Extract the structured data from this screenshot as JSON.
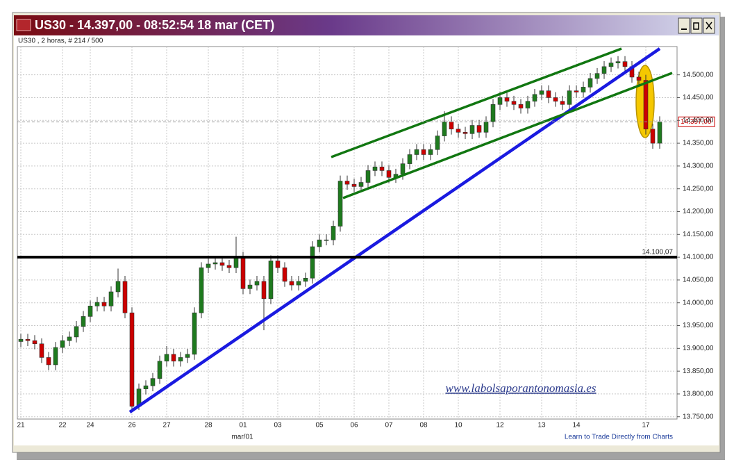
{
  "chart_data": {
    "type": "candlestick",
    "title": "US30 - 14.397,00 - 08:52:54  18 mar (CET)",
    "subtitle": "US30 , 2 horas, # 214 / 500",
    "watermark": "www.labolsaporantonomasia.es",
    "footer": "Learn to Trade Directly from Charts",
    "month_label": "mar/01",
    "up_color": "#1e7a1e",
    "down_color": "#cc0000",
    "grid": true,
    "categories": [
      "21",
      null,
      null,
      null,
      null,
      null,
      "22",
      null,
      null,
      null,
      "24",
      null,
      null,
      null,
      null,
      null,
      "26",
      null,
      null,
      null,
      null,
      "27",
      null,
      null,
      null,
      null,
      null,
      "28",
      null,
      null,
      null,
      null,
      "01",
      null,
      null,
      null,
      null,
      "03",
      null,
      null,
      null,
      null,
      null,
      "05",
      null,
      null,
      null,
      null,
      "06",
      null,
      null,
      null,
      null,
      "07",
      null,
      null,
      null,
      null,
      "08",
      null,
      null,
      null,
      null,
      "10",
      null,
      null,
      null,
      null,
      null,
      "12",
      null,
      null,
      null,
      null,
      null,
      "13",
      null,
      null,
      null,
      null,
      "14",
      null,
      null,
      null,
      null,
      null,
      null,
      null,
      null,
      null,
      "17",
      null,
      null
    ],
    "open": [
      13915,
      13920,
      13917,
      13910,
      13880,
      13864,
      13902,
      13917,
      13925,
      13948,
      13970,
      13993,
      14001,
      13993,
      14024,
      14047,
      13978,
      13773,
      13811,
      13818,
      13834,
      13872,
      13887,
      13872,
      13880,
      13887,
      13978,
      14077,
      14085,
      14088,
      14082,
      14077,
      14100,
      14031,
      14039,
      14047,
      14009,
      14092,
      14077,
      14047,
      14039,
      14047,
      14054,
      14123,
      14138,
      14138,
      14168,
      14267,
      14260,
      14255,
      14264,
      14290,
      14298,
      14290,
      14275,
      14282,
      14305,
      14325,
      14336,
      14325,
      14336,
      14366,
      14397,
      14381,
      14374,
      14371,
      14389,
      14374,
      14397,
      14435,
      14450,
      14442,
      14435,
      14427,
      14442,
      14457,
      14465,
      14450,
      14442,
      14435,
      14465,
      14462,
      14473,
      14492,
      14503,
      14518,
      14526,
      14529,
      14518,
      14495,
      14488,
      14381,
      14350
    ],
    "high": [
      13932,
      13932,
      13929,
      13922,
      13892,
      13914,
      13929,
      13937,
      13960,
      13982,
      14005,
      14013,
      14013,
      14036,
      14075,
      14059,
      13990,
      13823,
      13830,
      13846,
      13884,
      13905,
      13899,
      13892,
      13899,
      13990,
      14089,
      14097,
      14100,
      14100,
      14094,
      14145,
      14112,
      14051,
      14059,
      14059,
      14104,
      14104,
      14089,
      14059,
      14059,
      14066,
      14135,
      14150,
      14150,
      14180,
      14279,
      14279,
      14272,
      14276,
      14302,
      14310,
      14310,
      14302,
      14294,
      14317,
      14337,
      14348,
      14348,
      14348,
      14378,
      14420,
      14409,
      14393,
      14386,
      14401,
      14401,
      14409,
      14447,
      14462,
      14462,
      14454,
      14447,
      14454,
      14469,
      14477,
      14477,
      14462,
      14454,
      14477,
      14477,
      14485,
      14504,
      14515,
      14530,
      14538,
      14541,
      14541,
      14530,
      14507,
      14500,
      14393,
      14409
    ],
    "low": [
      13903,
      13905,
      13898,
      13868,
      13852,
      13852,
      13890,
      13905,
      13913,
      13936,
      13958,
      13981,
      13981,
      13981,
      14012,
      13966,
      13765,
      13765,
      13799,
      13806,
      13822,
      13860,
      13860,
      13860,
      13868,
      13875,
      13966,
      14065,
      14073,
      14070,
      14065,
      14065,
      14019,
      14019,
      14027,
      13940,
      13997,
      14065,
      14035,
      14027,
      14027,
      14035,
      14042,
      14111,
      14126,
      14126,
      14156,
      14248,
      14243,
      14243,
      14252,
      14278,
      14278,
      14263,
      14263,
      14270,
      14293,
      14313,
      14313,
      14313,
      14324,
      14354,
      14369,
      14362,
      14359,
      14359,
      14362,
      14362,
      14385,
      14423,
      14430,
      14423,
      14415,
      14415,
      14430,
      14445,
      14438,
      14430,
      14423,
      14423,
      14450,
      14450,
      14461,
      14480,
      14491,
      14506,
      14514,
      14506,
      14483,
      14476,
      14369,
      14338,
      14338
    ],
    "close": [
      13920,
      13917,
      13910,
      13880,
      13864,
      13902,
      13917,
      13925,
      13948,
      13970,
      13993,
      14001,
      13993,
      14024,
      14047,
      13978,
      13773,
      13811,
      13818,
      13834,
      13872,
      13887,
      13872,
      13880,
      13887,
      13978,
      14077,
      14085,
      14088,
      14082,
      14077,
      14100,
      14031,
      14039,
      14047,
      14009,
      14092,
      14077,
      14047,
      14039,
      14047,
      14054,
      14123,
      14138,
      14138,
      14168,
      14267,
      14260,
      14255,
      14264,
      14290,
      14298,
      14290,
      14275,
      14282,
      14305,
      14325,
      14336,
      14325,
      14336,
      14366,
      14397,
      14381,
      14374,
      14371,
      14389,
      14374,
      14397,
      14435,
      14450,
      14442,
      14435,
      14427,
      14442,
      14457,
      14465,
      14450,
      14442,
      14435,
      14465,
      14462,
      14473,
      14492,
      14503,
      14518,
      14526,
      14529,
      14518,
      14495,
      14488,
      14381,
      14350,
      14397
    ],
    "ylim": [
      13745,
      14562
    ],
    "yticks": [
      {
        "value": 13750,
        "label": "13.750,00"
      },
      {
        "value": 13800,
        "label": "13.800,00"
      },
      {
        "value": 13850,
        "label": "13.850,00"
      },
      {
        "value": 13900,
        "label": "13.900,00"
      },
      {
        "value": 13950,
        "label": "13.950,00"
      },
      {
        "value": 14000,
        "label": "14.000,00"
      },
      {
        "value": 14050,
        "label": "14.050,00"
      },
      {
        "value": 14100,
        "label": "14.100,00"
      },
      {
        "value": 14150,
        "label": "14.150,00"
      },
      {
        "value": 14200,
        "label": "14.200,00"
      },
      {
        "value": 14250,
        "label": "14.250,00"
      },
      {
        "value": 14300,
        "label": "14.300,00"
      },
      {
        "value": 14350,
        "label": "14.350,00"
      },
      {
        "value": 14400,
        "label": "14.400,00"
      },
      {
        "value": 14450,
        "label": "14.450,00"
      },
      {
        "value": 14500,
        "label": "14.500,00"
      }
    ],
    "hline": {
      "value": 14100.07,
      "label": "14.100,07"
    },
    "current": {
      "value": 14397,
      "label": "14.397,00"
    }
  }
}
